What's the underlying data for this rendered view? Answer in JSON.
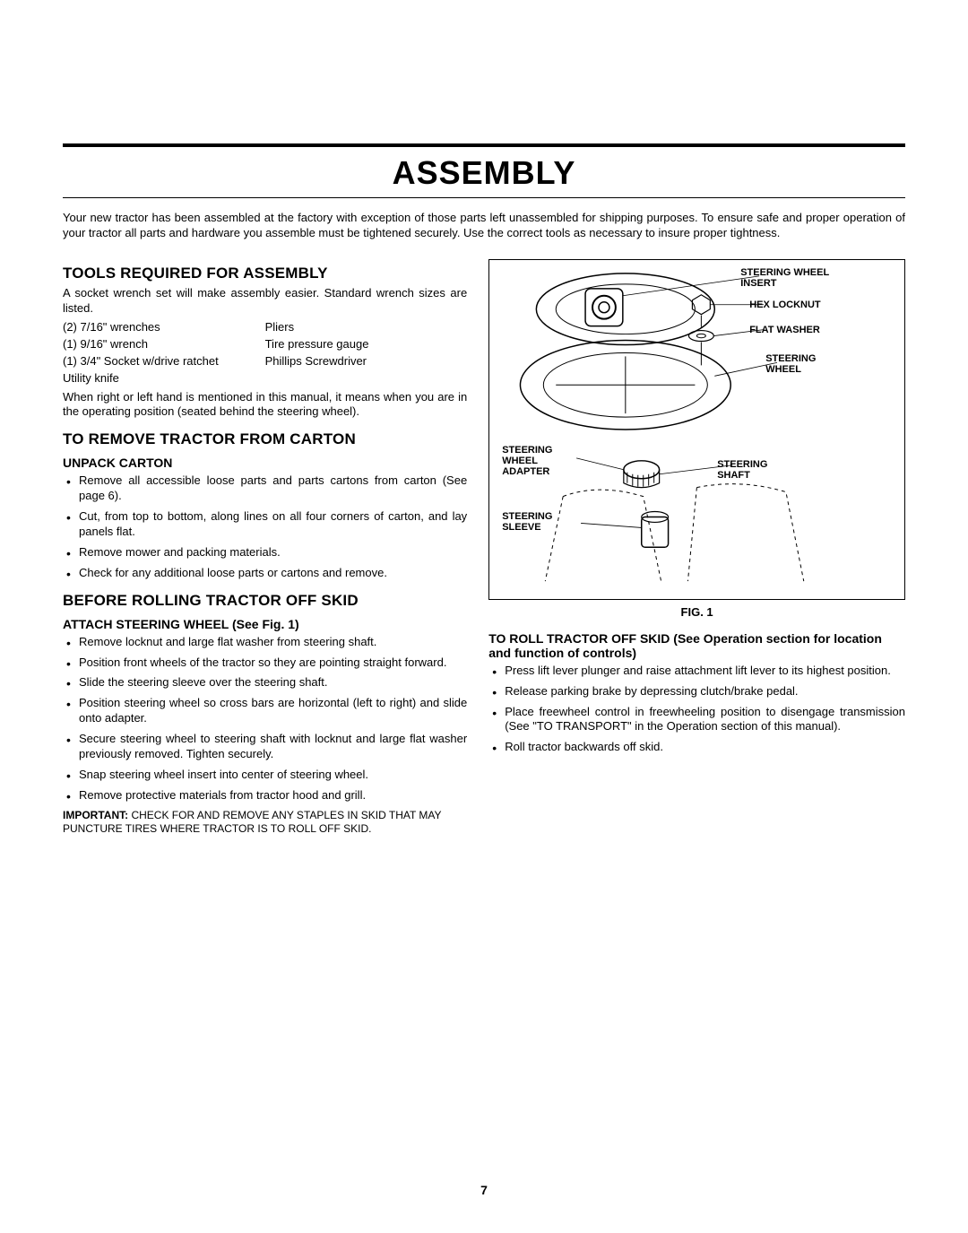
{
  "page_title": "ASSEMBLY",
  "intro": "Your new tractor has been assembled at the factory with exception of those parts left unassembled for shipping purposes. To ensure safe and proper operation of your tractor all parts and hardware you assemble must be tightened securely. Use the correct tools as necessary to insure proper tightness.",
  "tools": {
    "heading": "TOOLS REQUIRED FOR ASSEMBLY",
    "lead": "A socket wrench set will make assembly easier. Standard wrench sizes are listed.",
    "grid": [
      [
        "(2)  7/16\" wrenches",
        "Pliers"
      ],
      [
        "(1)  9/16\" wrench",
        "Tire pressure gauge"
      ],
      [
        "(1)  3/4\" Socket w/drive ratchet",
        "Phillips Screwdriver"
      ],
      [
        "Utility knife",
        ""
      ]
    ],
    "note": "When right or left hand is mentioned in this manual, it means when you are in the operating position (seated behind the steering wheel)."
  },
  "remove": {
    "heading": "TO REMOVE TRACTOR FROM CARTON",
    "subhead": "UNPACK CARTON",
    "steps": [
      "Remove all accessible loose parts and parts cartons from carton (See page 6).",
      "Cut, from top to bottom, along lines on all four corners of carton, and lay panels flat.",
      "Remove mower and packing materials.",
      "Check for any additional loose parts or cartons and remove."
    ]
  },
  "before": {
    "heading": "BEFORE ROLLING TRACTOR OFF SKID",
    "subhead": "ATTACH STEERING WHEEL (See Fig. 1)",
    "steps": [
      "Remove locknut and large flat washer from steering shaft.",
      "Position front wheels of the tractor so they are pointing straight forward.",
      "Slide the steering sleeve over the steering shaft.",
      "Position steering wheel so cross bars are horizontal (left to right) and slide onto adapter.",
      "Secure steering wheel to steering shaft with locknut and large flat washer previously removed. Tighten securely.",
      "Snap steering wheel insert into center of steering wheel.",
      "Remove protective materials from tractor hood and grill."
    ],
    "important_label": "IMPORTANT:",
    "important_text": "CHECK FOR AND REMOVE ANY STAPLES IN SKID THAT MAY PUNCTURE TIRES WHERE TRACTOR IS TO ROLL OFF SKID."
  },
  "figure": {
    "caption": "FIG. 1",
    "labels": {
      "insert": "STEERING WHEEL\nINSERT",
      "locknut": "HEX LOCKNUT",
      "washer": "FLAT WASHER",
      "wheel": "STEERING\nWHEEL",
      "adapter": "STEERING\nWHEEL\nADAPTER",
      "shaft": "STEERING\nSHAFT",
      "sleeve": "STEERING\nSLEEVE"
    }
  },
  "roll": {
    "heading": "TO ROLL TRACTOR OFF SKID (See Operation section for location and function of controls)",
    "steps": [
      "Press lift lever plunger and raise attachment lift lever to its highest position.",
      "Release parking brake by depressing clutch/brake pedal.",
      "Place freewheel control in freewheeling position to disengage transmission (See \"TO TRANSPORT\" in the Operation section of this manual).",
      "Roll tractor backwards off skid."
    ]
  },
  "page_number": "7",
  "colors": {
    "text": "#000000",
    "background": "#ffffff"
  },
  "typography": {
    "title_fontsize": 36,
    "section_fontsize": 17,
    "subhead_fontsize": 14,
    "body_fontsize": 13,
    "label_fontsize": 11
  }
}
